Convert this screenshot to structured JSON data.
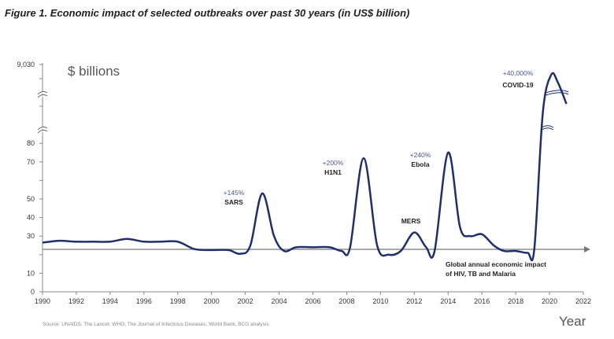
{
  "title": "Figure 1. Economic impact of selected outbreaks over past 30 years (in US$ billion)",
  "source": "Source: UNAIDS, The Lancet, WHO, The Journal of Infectious Diseases, World Bank, BCG analysis",
  "chart_data": {
    "type": "line",
    "title": "Figure 1. Economic impact of selected outbreaks over past 30 years (in US$ billion)",
    "ylabel": "$ billions",
    "xlabel": "Year",
    "xlim": [
      1990,
      2022
    ],
    "x_ticks": [
      "1990",
      "1992",
      "1994",
      "1996",
      "1998",
      "2000",
      "2002",
      "2004",
      "2006",
      "2008",
      "2010",
      "2012",
      "2014",
      "2016",
      "2018",
      "2020",
      "2022"
    ],
    "y_ticks": [
      "0",
      "10",
      "30",
      "40",
      "50",
      "70",
      "80",
      "9,030"
    ],
    "y_axis_broken": true,
    "baseline": {
      "value": 23,
      "label_line1": "Global annual economic impact",
      "label_line2": "of HIV, TB and Malaria"
    },
    "series": [
      {
        "name": "Economic impact",
        "color": "#1f2f6e",
        "x": [
          1990,
          1991,
          1992,
          1993,
          1994,
          1995,
          1996,
          1997,
          1998,
          1999,
          2000,
          2001,
          2001.7,
          2002.3,
          2003,
          2003.7,
          2004.3,
          2005,
          2006,
          2007,
          2007.7,
          2008.2,
          2009,
          2009.8,
          2010.5,
          2011.2,
          2012,
          2012.7,
          2013.2,
          2014,
          2014.7,
          2015.3,
          2016,
          2016.7,
          2017.3,
          2018,
          2018.7,
          2019.1,
          2019.6,
          2020.1,
          2020.5,
          2021
        ],
        "y": [
          26.5,
          27.5,
          27,
          27,
          27,
          28.5,
          27,
          27,
          27,
          23,
          22.5,
          22.5,
          20.5,
          25,
          53,
          30,
          22,
          24,
          24,
          24,
          22,
          24,
          72,
          25,
          20,
          22,
          32,
          24,
          22,
          75,
          35,
          30,
          31,
          25,
          22,
          22,
          21,
          23,
          3000,
          7770,
          6800,
          4190
        ]
      }
    ],
    "annotations": [
      {
        "event": "SARS",
        "change": "+145%"
      },
      {
        "event": "H1N1",
        "change": "+200%"
      },
      {
        "event": "MERS",
        "change": ""
      },
      {
        "event": "Ebola",
        "change": "+240%"
      },
      {
        "event": "COVID-19",
        "change": "+40,000%"
      }
    ]
  }
}
